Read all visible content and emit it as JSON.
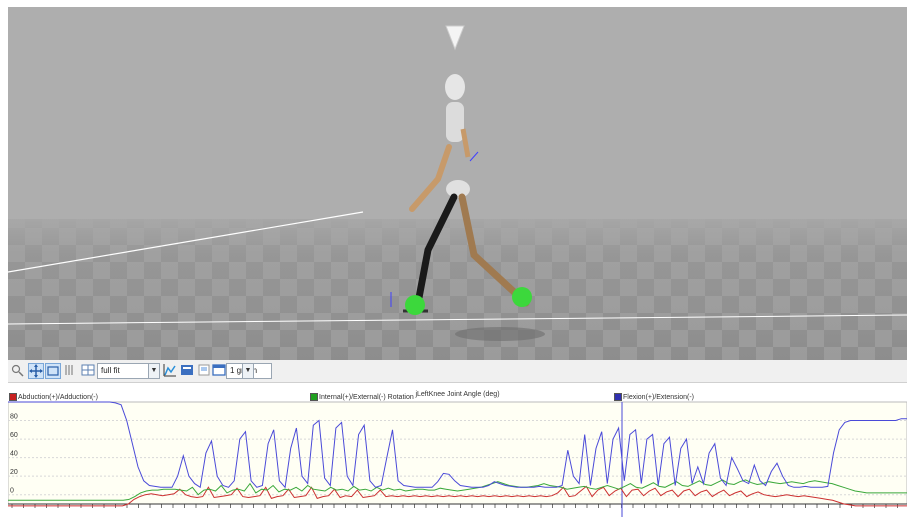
{
  "toolbar": {
    "fit_mode": "full fit",
    "graph_count": "1 graph",
    "icons": [
      "zoom-icon",
      "pan-icon",
      "fit-icon",
      "columns-icon",
      "layout-icon",
      "chart-icon",
      "export-icon",
      "print-icon",
      "graph-icon"
    ]
  },
  "graph": {
    "title": "jLeftKnee Joint Angle (deg)",
    "legend": [
      {
        "label": "Abduction(+)/Adduction(-)",
        "color": "#c82020"
      },
      {
        "label": "Internal(+)/External(-) Rotation",
        "color": "#20a020"
      },
      {
        "label": "Flexion(+)/Extension(-)",
        "color": "#3030b0"
      }
    ]
  },
  "chart_data": {
    "type": "line",
    "title": "jLeftKnee Joint Angle (deg)",
    "y_ticks": [
      "80",
      "60",
      "40",
      "20",
      "0"
    ],
    "ylim": [
      -10,
      100
    ],
    "series": [
      {
        "name": "Flexion(+)/Extension(-)",
        "color": "#4a4ad8",
        "values": [
          100,
          100,
          100,
          100,
          100,
          100,
          100,
          100,
          100,
          100,
          100,
          100,
          100,
          100,
          100,
          100,
          100,
          100,
          100,
          99,
          97,
          80,
          55,
          30,
          15,
          10,
          9,
          8,
          8,
          8,
          20,
          42,
          20,
          12,
          8,
          45,
          58,
          20,
          10,
          8,
          15,
          60,
          68,
          15,
          8,
          10,
          55,
          70,
          15,
          8,
          50,
          72,
          20,
          12,
          75,
          80,
          18,
          10,
          72,
          78,
          20,
          10,
          65,
          75,
          15,
          8,
          10,
          40,
          70,
          15,
          10,
          9,
          8,
          8,
          8,
          8,
          14,
          23,
          22,
          15,
          10,
          9,
          8,
          8,
          8,
          10,
          14,
          12,
          10,
          9,
          8,
          8,
          8,
          8,
          9,
          8,
          8,
          8,
          10,
          48,
          20,
          12,
          65,
          10,
          50,
          68,
          12,
          60,
          72,
          15,
          65,
          70,
          12,
          60,
          65,
          10,
          55,
          62,
          10,
          50,
          60,
          12,
          30,
          12,
          45,
          55,
          18,
          10,
          40,
          28,
          15,
          12,
          32,
          15,
          10,
          25,
          34,
          20,
          10,
          8,
          8,
          9,
          8,
          8,
          8,
          9,
          45,
          70,
          78,
          80,
          80,
          80,
          80,
          80,
          80,
          80,
          80,
          80,
          82,
          82
        ]
      },
      {
        "name": "Internal(+)/External(-) Rotation",
        "color": "#3aa83a",
        "values": [
          -6,
          -6,
          -6,
          -6,
          -6,
          -6,
          -6,
          -6,
          -6,
          -6,
          -6,
          -6,
          -6,
          -6,
          -6,
          -6,
          -6,
          -6,
          -6,
          -6,
          -6,
          -5,
          -2,
          2,
          4,
          5,
          5,
          6,
          6,
          6,
          5,
          4,
          8,
          0,
          5,
          6,
          4,
          10,
          2,
          5,
          6,
          4,
          12,
          2,
          6,
          5,
          10,
          3,
          6,
          5,
          8,
          4,
          10,
          6,
          5,
          4,
          8,
          5,
          6,
          4,
          9,
          5,
          6,
          4,
          8,
          5,
          7,
          5,
          6,
          4,
          5,
          6,
          6,
          5,
          5,
          7,
          6,
          5,
          4,
          5,
          6,
          7,
          8,
          10,
          12,
          14,
          12,
          10,
          9,
          8,
          8,
          9,
          10,
          12,
          10,
          9,
          8,
          6,
          7,
          8,
          9,
          7,
          6,
          8,
          10,
          8,
          6,
          9,
          12,
          8,
          7,
          10,
          13,
          9,
          8,
          11,
          14,
          10,
          9,
          12,
          15,
          11,
          10,
          13,
          16,
          12,
          11,
          14,
          16,
          13,
          11,
          12,
          14,
          13,
          12,
          13,
          14,
          13,
          12,
          14,
          15,
          14,
          13,
          12,
          10,
          8,
          6,
          4,
          3,
          2,
          2,
          2,
          2,
          2,
          2,
          2,
          2
        ]
      },
      {
        "name": "Abduction(+)/Adduction(-)",
        "color": "#cc3030",
        "values": [
          -12,
          -12,
          -12,
          -12,
          -12,
          -12,
          -12,
          -12,
          -12,
          -12,
          -12,
          -12,
          -12,
          -12,
          -12,
          -12,
          -12,
          -12,
          -12,
          -12,
          -12,
          -10,
          -5,
          -2,
          0,
          1,
          0,
          -1,
          0,
          1,
          6,
          0,
          -2,
          -3,
          -2,
          8,
          -3,
          -2,
          -1,
          0,
          7,
          -2,
          -3,
          -2,
          -1,
          8,
          -4,
          -2,
          -1,
          6,
          -3,
          -2,
          -1,
          8,
          -4,
          -2,
          -1,
          6,
          -3,
          -1,
          -2,
          5,
          -3,
          -2,
          -1,
          5,
          -2,
          -1,
          -2,
          -1,
          -2,
          -1,
          -2,
          -1,
          -2,
          -1,
          -2,
          -1,
          -2,
          -1,
          -2,
          -1,
          -2,
          -1,
          -2,
          -1,
          -2,
          -1,
          -2,
          -1,
          -2,
          -1,
          -2,
          -1,
          -2,
          -1,
          2,
          8,
          -2,
          -1,
          4,
          9,
          -2,
          5,
          8,
          -1,
          4,
          7,
          -2,
          5,
          6,
          -1,
          4,
          7,
          -1,
          3,
          5,
          -2,
          4,
          6,
          -1,
          3,
          5,
          -2,
          2,
          5,
          -1,
          2,
          4,
          -2,
          1,
          3,
          0,
          -1,
          -2,
          -1,
          0,
          -1,
          -2,
          -1,
          -2,
          -3,
          -4,
          -5,
          -6,
          -8,
          -10,
          -11,
          -12,
          -12,
          -12,
          -12,
          -12,
          -12,
          -12,
          -12,
          -12,
          -12
        ]
      }
    ]
  }
}
